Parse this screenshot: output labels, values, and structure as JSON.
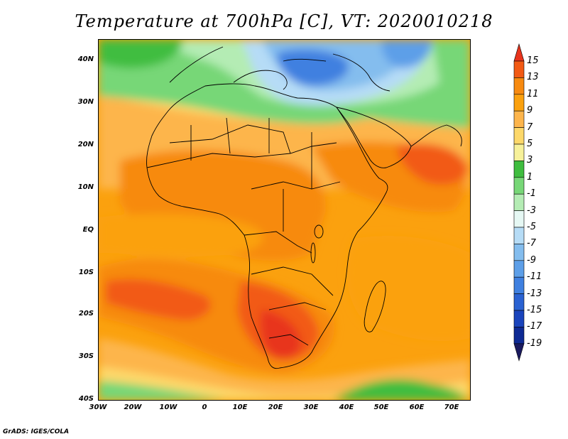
{
  "title": "Temperature at 700hPa [C], VT: 2020010218",
  "credit": "GrADS: IGES/COLA",
  "lat_ticks": [
    "40N",
    "30N",
    "20N",
    "10N",
    "EQ",
    "10S",
    "20S",
    "30S",
    "40S"
  ],
  "lon_ticks": [
    "30W",
    "20W",
    "10W",
    "0",
    "10E",
    "20E",
    "30E",
    "40E",
    "50E",
    "60E",
    "70E"
  ],
  "colorbar": {
    "labels": [
      "15",
      "13",
      "11",
      "9",
      "7",
      "5",
      "3",
      "1",
      "-1",
      "-3",
      "-5",
      "-7",
      "-9",
      "-11",
      "-13",
      "-15",
      "-17",
      "-19"
    ],
    "colors": [
      "#e8341c",
      "#f25a14",
      "#f78a10",
      "#fba10e",
      "#fdb54c",
      "#fdd86a",
      "#f7f19a",
      "#3fbd3f",
      "#77d777",
      "#b4ecb4",
      "#e6f8f4",
      "#b6dcf6",
      "#84bdee",
      "#5d9fe8",
      "#3f80e0",
      "#2a62d2",
      "#1a44bc",
      "#0e2a94",
      "#1a1a5e"
    ]
  }
}
